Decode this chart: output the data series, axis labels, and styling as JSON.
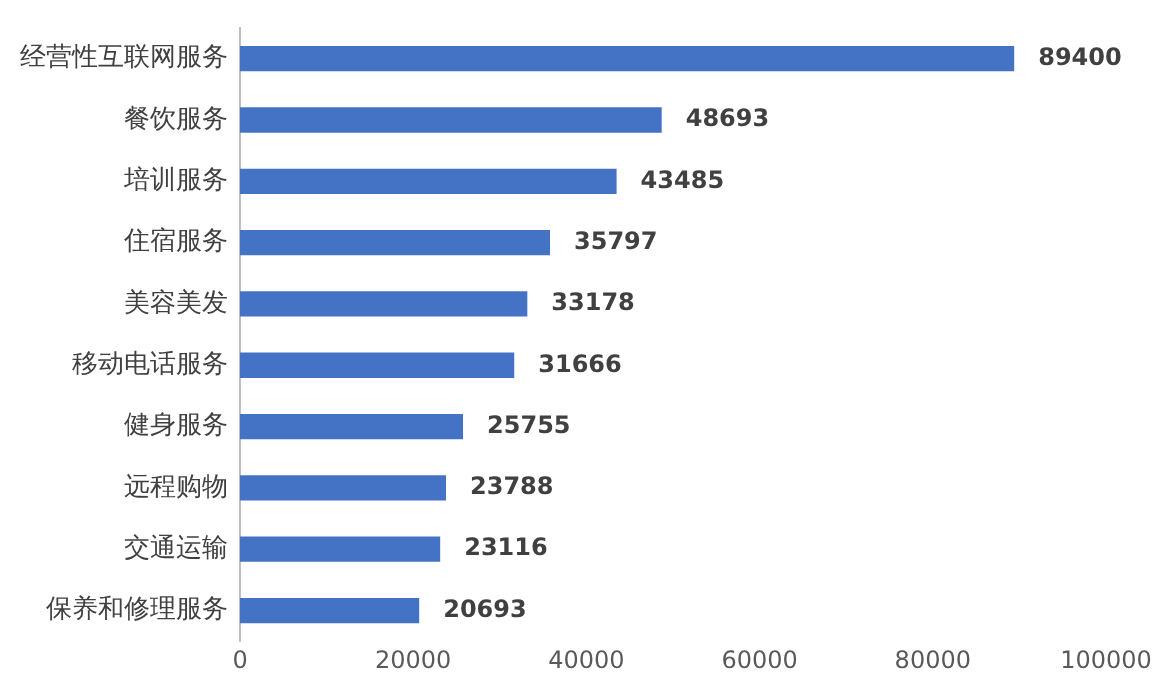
{
  "chart_data": {
    "type": "bar",
    "orientation": "horizontal",
    "categories": [
      "经营性互联网服务",
      "餐饮服务",
      "培训服务",
      "住宿服务",
      "美容美发",
      "移动电话服务",
      "健身服务",
      "远程购物",
      "交通运输",
      "保养和修理服务"
    ],
    "values": [
      89400,
      48693,
      43485,
      35797,
      33178,
      31666,
      25755,
      23788,
      23116,
      20693
    ],
    "color": "#4472c4",
    "xlim": [
      0,
      100000
    ],
    "xticks": [
      0,
      20000,
      40000,
      60000,
      80000,
      100000
    ],
    "grid": false,
    "data_labels": true
  }
}
